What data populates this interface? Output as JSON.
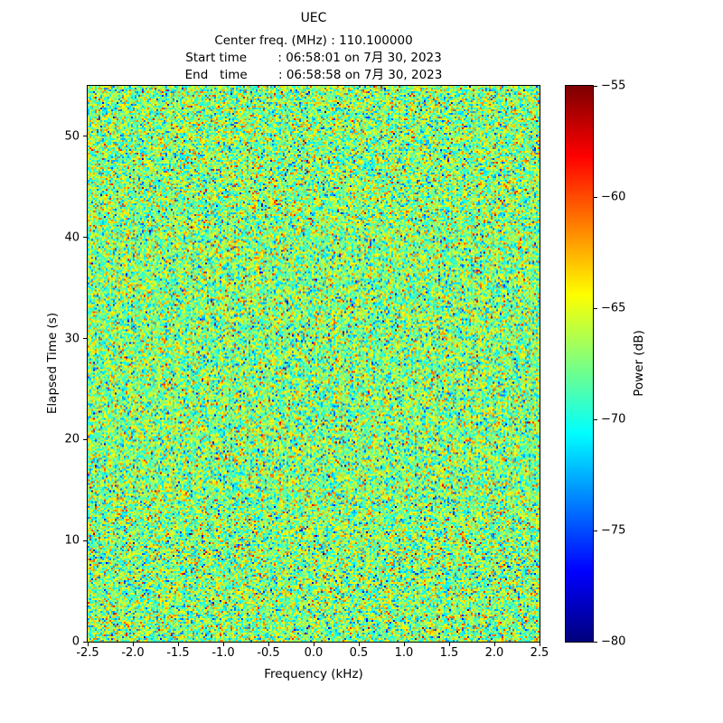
{
  "figure": {
    "title": "UEC",
    "info_lines": [
      "Center freq. (MHz) : 110.100000",
      "Start time        : 06:58:01 on 7月 30, 2023",
      "End   time        : 06:58:58 on 7月 30, 2023"
    ]
  },
  "chart_data": {
    "type": "heatmap",
    "title": "UEC",
    "annotations": [
      "Center freq. (MHz) : 110.100000",
      "Start time : 06:58:01 on 7月 30, 2023",
      "End time : 06:58:58 on 7月 30, 2023"
    ],
    "xlabel": "Frequency (kHz)",
    "ylabel": "Elapsed Time (s)",
    "xlim": [
      -2.5,
      2.5
    ],
    "ylim": [
      0,
      55
    ],
    "xtick_values": [
      -2.5,
      -2.0,
      -1.5,
      -1.0,
      -0.5,
      0.0,
      0.5,
      1.0,
      1.5,
      2.0,
      2.5
    ],
    "xtick_labels": [
      "-2.5",
      "-2.0",
      "-1.5",
      "-1.0",
      "-0.5",
      "0.0",
      "0.5",
      "1.0",
      "1.5",
      "2.0",
      "2.5"
    ],
    "ytick_values": [
      0,
      10,
      20,
      30,
      40,
      50
    ],
    "ytick_labels": [
      "0",
      "10",
      "20",
      "30",
      "40",
      "50"
    ],
    "grid": false,
    "colorbar": {
      "label": "Power (dB)",
      "vmin": -80,
      "vmax": -55,
      "tick_values": [
        -55,
        -60,
        -65,
        -70,
        -75,
        -80
      ],
      "tick_labels": [
        "−55",
        "−60",
        "−65",
        "−70",
        "−75",
        "−80"
      ],
      "colormap": "jet",
      "position": "right"
    },
    "values": {
      "description": "Broadband random noise spectrogram (no coherent signal visible); per-pixel power in dB",
      "distribution": "gaussian",
      "mean_db": -67.3,
      "std_db": 3.3,
      "clip_db": [
        -80,
        -55
      ],
      "grid_cols": 250,
      "grid_rows": 308
    }
  }
}
